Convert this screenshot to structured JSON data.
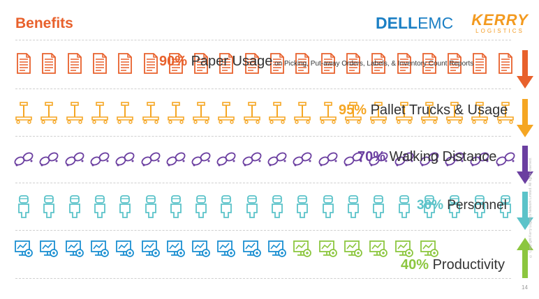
{
  "title": "Benefits",
  "logos": {
    "dell_bold": "DELL",
    "dell_light": "EMC",
    "kerry_main": "KERRY",
    "kerry_sub": "LOGISTICS"
  },
  "rows": [
    {
      "key": "paper",
      "icon": "document-icon",
      "color": "#e8612c",
      "faded_color": "#e8612c",
      "count": 20,
      "faded_from": 20,
      "percent": "90%",
      "label": "Paper Usage",
      "sublabel": "on Picking, Put-away Orders, Labels, & Inventory Count Reports",
      "arrow": "down"
    },
    {
      "key": "pallet",
      "icon": "pallet-truck-icon",
      "color": "#f5a623",
      "faded_color": "#f5a623",
      "count": 20,
      "faded_from": 20,
      "percent": "95%",
      "label": "Pallet Trucks & Usage",
      "sublabel": "",
      "arrow": "down"
    },
    {
      "key": "walking",
      "icon": "footprints-icon",
      "color": "#6b3fa0",
      "faded_color": "#6b3fa0",
      "count": 20,
      "faded_from": 20,
      "percent": "70%",
      "label": "Walking Distance",
      "sublabel": "",
      "arrow": "down"
    },
    {
      "key": "personnel",
      "icon": "person-icon",
      "color": "#5bc3c9",
      "faded_color": "#5bc3c9",
      "count": 20,
      "faded_from": 20,
      "percent": "30%",
      "label": "Personnel",
      "sublabel": "",
      "arrow": "down"
    },
    {
      "key": "productivity",
      "icon": "monitor-gear-icon",
      "color": "#1b8fd1",
      "faded_color": "#8cc63f",
      "count": 17,
      "faded_from": 11,
      "percent": "40%",
      "label": "Productivity",
      "sublabel": "",
      "arrow": "up"
    }
  ],
  "arrow_colors": [
    "#e8612c",
    "#f5a623",
    "#6b3fa0",
    "#5bc3c9",
    "#8cc63f"
  ],
  "side_text": "© Copyright Kerry Logistics Network Limited. All rights reserved.",
  "page_number": "14"
}
